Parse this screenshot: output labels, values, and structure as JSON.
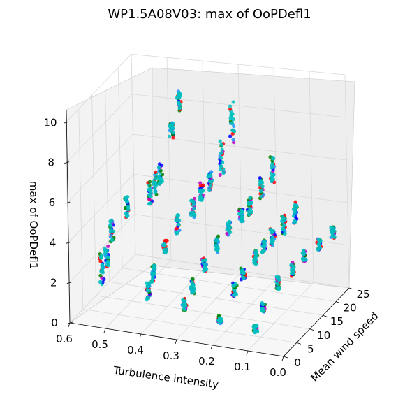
{
  "chart_data": {
    "type": "scatter",
    "projection": "3d",
    "title": "WP1.5A08V03: max of OoPDefl1",
    "xlabel": "Turbulence intensity",
    "ylabel": "Mean wind speed",
    "zlabel": "max of OoPDefl1",
    "xlim": [
      0.0,
      0.6
    ],
    "ylim": [
      0,
      25
    ],
    "zlim": [
      0,
      10
    ],
    "x_ticks": [
      "0.6",
      "0.5",
      "0.4",
      "0.3",
      "0.2",
      "0.1",
      "0.0"
    ],
    "y_ticks": [
      "0",
      "5",
      "10",
      "15",
      "20",
      "25"
    ],
    "z_ticks": [
      "0",
      "2",
      "4",
      "6",
      "8",
      "10"
    ],
    "grid": true,
    "marker_colors": [
      "#00bfbf",
      "#ff0000",
      "#008000",
      "#0000ff",
      "#bf00bf",
      "#1e90ff"
    ],
    "groups": [
      {
        "ti": 0.53,
        "ws": 3,
        "zmin": 1.7,
        "zmax": 3.2
      },
      {
        "ti": 0.53,
        "ws": 5,
        "zmin": 2.3,
        "zmax": 3.3
      },
      {
        "ti": 0.53,
        "ws": 7,
        "zmin": 3.3,
        "zmax": 4.3
      },
      {
        "ti": 0.5,
        "ws": 9,
        "zmin": 4.3,
        "zmax": 5.3
      },
      {
        "ti": 0.45,
        "ws": 11,
        "zmin": 4.8,
        "zmax": 5.9
      },
      {
        "ti": 0.45,
        "ws": 13,
        "zmin": 5.0,
        "zmax": 6.1
      },
      {
        "ti": 0.45,
        "ws": 15,
        "zmin": 5.2,
        "zmax": 6.2
      },
      {
        "ti": 0.43,
        "ws": 17,
        "zmin": 7.3,
        "zmax": 8.0
      },
      {
        "ti": 0.43,
        "ws": 20,
        "zmin": 8.2,
        "zmax": 9.1
      },
      {
        "ti": 0.4,
        "ws": 3,
        "zmin": 1.3,
        "zmax": 2.1
      },
      {
        "ti": 0.4,
        "ws": 5,
        "zmin": 1.9,
        "zmax": 2.7
      },
      {
        "ti": 0.38,
        "ws": 7,
        "zmin": 3.1,
        "zmax": 3.7
      },
      {
        "ti": 0.36,
        "ws": 9,
        "zmin": 3.8,
        "zmax": 4.7
      },
      {
        "ti": 0.33,
        "ws": 11,
        "zmin": 4.4,
        "zmax": 5.3
      },
      {
        "ti": 0.32,
        "ws": 13,
        "zmin": 5.0,
        "zmax": 5.8
      },
      {
        "ti": 0.31,
        "ws": 15,
        "zmin": 5.2,
        "zmax": 6.1
      },
      {
        "ti": 0.3,
        "ws": 18,
        "zmin": 5.6,
        "zmax": 7.2
      },
      {
        "ti": 0.29,
        "ws": 21,
        "zmin": 6.8,
        "zmax": 8.7
      },
      {
        "ti": 0.3,
        "ws": 3,
        "zmin": 1.0,
        "zmax": 1.6
      },
      {
        "ti": 0.29,
        "ws": 5,
        "zmin": 1.6,
        "zmax": 2.3
      },
      {
        "ti": 0.27,
        "ws": 7,
        "zmin": 2.5,
        "zmax": 3.1
      },
      {
        "ti": 0.25,
        "ws": 9,
        "zmin": 3.2,
        "zmax": 3.9
      },
      {
        "ti": 0.23,
        "ws": 11,
        "zmin": 3.8,
        "zmax": 4.4
      },
      {
        "ti": 0.21,
        "ws": 13,
        "zmin": 4.2,
        "zmax": 4.8
      },
      {
        "ti": 0.2,
        "ws": 15,
        "zmin": 4.3,
        "zmax": 5.1
      },
      {
        "ti": 0.19,
        "ws": 18,
        "zmin": 4.7,
        "zmax": 5.7
      },
      {
        "ti": 0.18,
        "ws": 21,
        "zmin": 5.1,
        "zmax": 6.3
      },
      {
        "ti": 0.2,
        "ws": 3,
        "zmin": 0.7,
        "zmax": 1.0
      },
      {
        "ti": 0.18,
        "ws": 6,
        "zmin": 1.6,
        "zmax": 2.2
      },
      {
        "ti": 0.17,
        "ws": 8,
        "zmin": 2.2,
        "zmax": 2.7
      },
      {
        "ti": 0.15,
        "ws": 10,
        "zmin": 2.7,
        "zmax": 3.3
      },
      {
        "ti": 0.14,
        "ws": 12,
        "zmin": 3.0,
        "zmax": 3.6
      },
      {
        "ti": 0.13,
        "ws": 14,
        "zmin": 3.1,
        "zmax": 3.9
      },
      {
        "ti": 0.12,
        "ws": 17,
        "zmin": 3.3,
        "zmax": 4.2
      },
      {
        "ti": 0.11,
        "ws": 20,
        "zmin": 3.4,
        "zmax": 4.4
      },
      {
        "ti": 0.1,
        "ws": 3,
        "zmin": 0.5,
        "zmax": 0.8
      },
      {
        "ti": 0.1,
        "ws": 6,
        "zmin": 1.1,
        "zmax": 1.5
      },
      {
        "ti": 0.08,
        "ws": 9,
        "zmin": 1.8,
        "zmax": 2.4
      },
      {
        "ti": 0.06,
        "ws": 12,
        "zmin": 2.1,
        "zmax": 2.7
      },
      {
        "ti": 0.05,
        "ws": 15,
        "zmin": 2.4,
        "zmax": 2.9
      },
      {
        "ti": 0.03,
        "ws": 18,
        "zmin": 2.6,
        "zmax": 3.1
      },
      {
        "ti": 0.02,
        "ws": 22,
        "zmin": 2.7,
        "zmax": 3.2
      }
    ]
  }
}
